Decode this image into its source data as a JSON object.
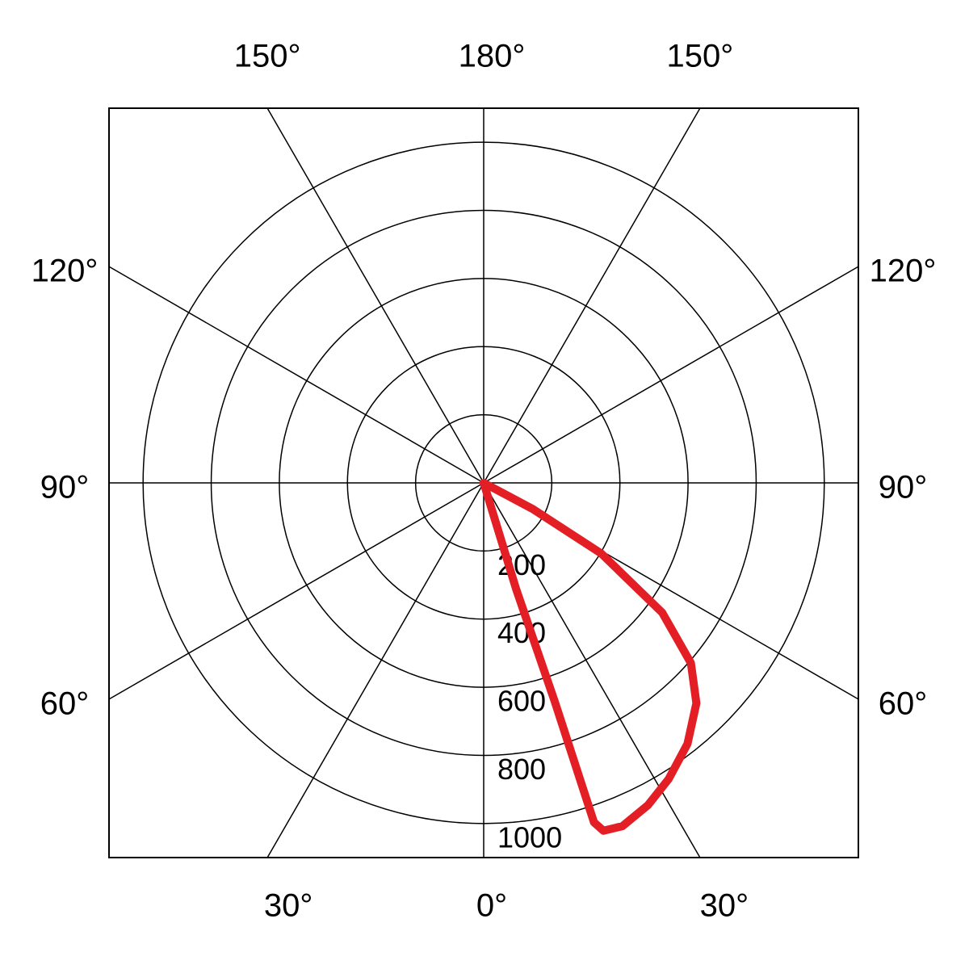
{
  "chart_data": {
    "type": "polar",
    "angle_ticks": [
      {
        "value": 0,
        "label": "0°"
      },
      {
        "value": 30,
        "label": "30°"
      },
      {
        "value": 60,
        "label": "60°"
      },
      {
        "value": 90,
        "label": "90°"
      },
      {
        "value": 120,
        "label": "120°"
      },
      {
        "value": 150,
        "label": "150°"
      },
      {
        "value": 180,
        "label": "180°"
      }
    ],
    "rlim": [
      0,
      1100
    ],
    "rticks": [
      200,
      400,
      600,
      800,
      1000
    ],
    "series": [
      {
        "color": "#e31e24",
        "theta": [
          90,
          62,
          59,
          54,
          49,
          44,
          38,
          32,
          27,
          22,
          19,
          18,
          18,
          17,
          18
        ],
        "r": [
          0,
          163,
          402,
          648,
          806,
          899,
          972,
          1025,
          1062,
          1087,
          1080,
          1048,
          678,
          327,
          0
        ]
      }
    ]
  }
}
